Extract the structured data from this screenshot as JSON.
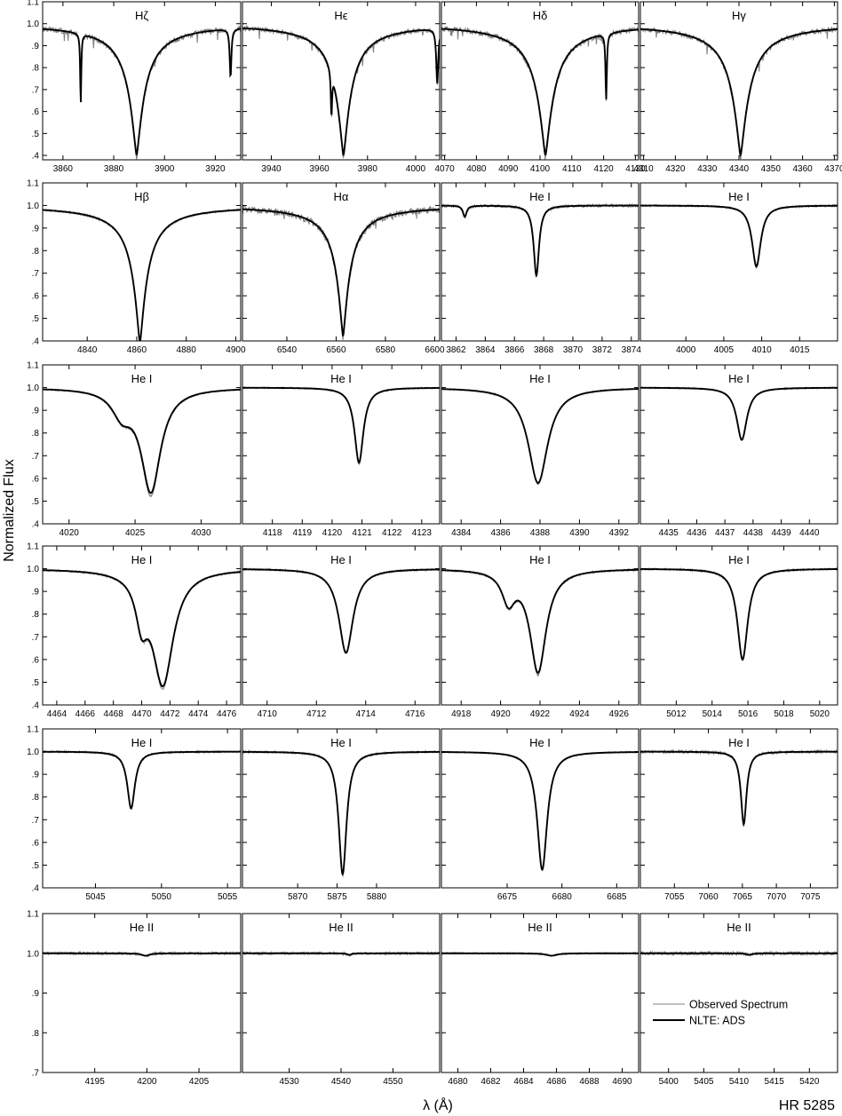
{
  "figure": {
    "ylabel": "Normalized Flux",
    "xlabel": "λ (Å)",
    "star": "HR 5285",
    "colors": {
      "observed": "#808080",
      "model": "#000000",
      "axes": "#000000"
    }
  },
  "legend": {
    "placement": "inside bottom-right panel, lower half",
    "items": [
      {
        "label": "Observed Spectrum",
        "color": "#808080",
        "style": "thin"
      },
      {
        "label": "NLTE: ADS",
        "color": "#000000",
        "style": "thick"
      }
    ]
  },
  "chart_data": [
    {
      "type": "line",
      "title": "Hζ",
      "xlim": [
        3852,
        3930
      ],
      "ylim": [
        0.38,
        1.1
      ],
      "xticks": [
        3860,
        3880,
        3900,
        3920
      ],
      "yticks": [
        ".4",
        ".5",
        ".6",
        ".7",
        ".8",
        ".9",
        "1.0",
        "1.1"
      ],
      "lines": [
        {
          "center": 3889,
          "depth": 0.6,
          "width": 3.5,
          "broad": true
        },
        {
          "center": 3867,
          "depth": 0.32,
          "width": 0.25,
          "broad": false
        },
        {
          "center": 3926,
          "depth": 0.22,
          "width": 0.4,
          "broad": false
        }
      ],
      "obs_extra_depth": 0.02,
      "noise": 0.012
    },
    {
      "type": "line",
      "title": "Hϵ",
      "xlim": [
        3928,
        4010
      ],
      "ylim": [
        0.38,
        1.1
      ],
      "xticks": [
        3940,
        3960,
        3980,
        4000
      ],
      "yticks": [
        ".4",
        ".5",
        ".6",
        ".7",
        ".8",
        ".9",
        "1.0",
        "1.1"
      ],
      "lines": [
        {
          "center": 3970,
          "depth": 0.6,
          "width": 3.5,
          "broad": true
        },
        {
          "center": 3965,
          "depth": 0.2,
          "width": 0.3,
          "broad": false
        },
        {
          "center": 4009,
          "depth": 0.25,
          "width": 0.5,
          "broad": false
        }
      ],
      "obs_extra_depth": 0.02,
      "noise": 0.01
    },
    {
      "type": "line",
      "title": "Hδ",
      "xlim": [
        4069,
        4131
      ],
      "ylim": [
        0.38,
        1.1
      ],
      "xticks": [
        4070,
        4080,
        4090,
        4100,
        4110,
        4120,
        4130
      ],
      "yticks": [
        ".4",
        ".5",
        ".6",
        ".7",
        ".8",
        ".9",
        "1.0",
        "1.1"
      ],
      "lines": [
        {
          "center": 4101.7,
          "depth": 0.6,
          "width": 3.0,
          "broad": true
        },
        {
          "center": 4120.8,
          "depth": 0.3,
          "width": 0.25,
          "broad": false
        }
      ],
      "obs_extra_depth": 0.02,
      "noise": 0.012
    },
    {
      "type": "line",
      "title": "Hγ",
      "xlim": [
        4309,
        4371
      ],
      "ylim": [
        0.38,
        1.1
      ],
      "xticks": [
        4310,
        4320,
        4330,
        4340,
        4350,
        4360,
        4370
      ],
      "yticks": [
        ".4",
        ".5",
        ".6",
        ".7",
        ".8",
        ".9",
        "1.0",
        "1.1"
      ],
      "lines": [
        {
          "center": 4340.5,
          "depth": 0.6,
          "width": 3.0,
          "broad": true
        }
      ],
      "obs_extra_depth": 0.02,
      "noise": 0.01
    },
    {
      "type": "line",
      "title": "Hβ",
      "xlim": [
        4822,
        4902
      ],
      "ylim": [
        0.4,
        1.1
      ],
      "xticks": [
        4840,
        4860,
        4880,
        4900
      ],
      "yticks": [
        ".4",
        ".5",
        ".6",
        ".7",
        ".8",
        ".9",
        "1.0",
        "1.1"
      ],
      "lines": [
        {
          "center": 4861.3,
          "depth": 0.61,
          "width": 3.2,
          "broad": true
        }
      ],
      "obs_extra_depth": 0.01,
      "noise": 0.004
    },
    {
      "type": "line",
      "title": "Hα",
      "xlim": [
        6522,
        6602
      ],
      "ylim": [
        0.4,
        1.1
      ],
      "xticks": [
        6540,
        6560,
        6580,
        6600
      ],
      "yticks": [
        ".4",
        ".5",
        ".6",
        ".7",
        ".8",
        ".9",
        "1.0",
        "1.1"
      ],
      "lines": [
        {
          "center": 6562.8,
          "depth": 0.58,
          "width": 3.0,
          "broad": true
        }
      ],
      "obs_extra_depth": 0.02,
      "noise": 0.015
    },
    {
      "type": "line",
      "title": "He I",
      "xlim": [
        3861,
        3874.5
      ],
      "ylim": [
        0.4,
        1.1
      ],
      "xticks": [
        3862,
        3864,
        3866,
        3868,
        3870,
        3872,
        3874
      ],
      "yticks": [
        ".4",
        ".5",
        ".6",
        ".7",
        ".8",
        ".9",
        "1.0",
        "1.1"
      ],
      "lines": [
        {
          "center": 3867.5,
          "depth": 0.31,
          "width": 0.22,
          "broad": false
        },
        {
          "center": 3862.6,
          "depth": 0.05,
          "width": 0.15,
          "broad": false
        }
      ],
      "obs_extra_depth": 0.02,
      "noise": 0.006
    },
    {
      "type": "line",
      "title": "He I",
      "xlim": [
        3994,
        4020
      ],
      "ylim": [
        0.4,
        1.1
      ],
      "xticks": [
        4000,
        4005,
        4010,
        4015
      ],
      "yticks": [
        ".4",
        ".5",
        ".6",
        ".7",
        ".8",
        ".9",
        "1.0",
        "1.1"
      ],
      "lines": [
        {
          "center": 4009.3,
          "depth": 0.27,
          "width": 0.7,
          "broad": false
        }
      ],
      "obs_extra_depth": 0.02,
      "noise": 0.004
    },
    {
      "type": "line",
      "title": "He I",
      "xlim": [
        4018,
        4033
      ],
      "ylim": [
        0.4,
        1.1
      ],
      "xticks": [
        4020,
        4025,
        4030
      ],
      "yticks": [
        ".4",
        ".5",
        ".6",
        ".7",
        ".8",
        ".9",
        "1.0",
        "1.1"
      ],
      "lines": [
        {
          "center": 4026.2,
          "depth": 0.45,
          "width": 0.9,
          "broad": false
        },
        {
          "center": 4024.0,
          "depth": 0.1,
          "width": 0.9,
          "broad": false
        }
      ],
      "obs_extra_depth": 0.03,
      "noise": 0.003
    },
    {
      "type": "line",
      "title": "He I",
      "xlim": [
        4117,
        4123.6
      ],
      "ylim": [
        0.4,
        1.1
      ],
      "xticks": [
        4118,
        4119,
        4120,
        4121,
        4122,
        4123
      ],
      "yticks": [
        ".4",
        ".5",
        ".6",
        ".7",
        ".8",
        ".9",
        "1.0",
        "1.1"
      ],
      "lines": [
        {
          "center": 4120.9,
          "depth": 0.33,
          "width": 0.18,
          "broad": false
        }
      ],
      "obs_extra_depth": 0.02,
      "noise": 0.003
    },
    {
      "type": "line",
      "title": "He I",
      "xlim": [
        4383,
        4393
      ],
      "ylim": [
        0.4,
        1.1
      ],
      "xticks": [
        4384,
        4386,
        4388,
        4390,
        4392
      ],
      "yticks": [
        ".4",
        ".5",
        ".6",
        ".7",
        ".8",
        ".9",
        "1.0",
        "1.1"
      ],
      "lines": [
        {
          "center": 4387.9,
          "depth": 0.42,
          "width": 0.6,
          "broad": false
        }
      ],
      "obs_extra_depth": 0.01,
      "noise": 0.003
    },
    {
      "type": "line",
      "title": "He I",
      "xlim": [
        4434,
        4441
      ],
      "ylim": [
        0.4,
        1.1
      ],
      "xticks": [
        4435,
        4436,
        4437,
        4438,
        4439,
        4440
      ],
      "yticks": [
        ".4",
        ".5",
        ".6",
        ".7",
        ".8",
        ".9",
        "1.0",
        "1.1"
      ],
      "lines": [
        {
          "center": 4437.6,
          "depth": 0.23,
          "width": 0.22,
          "broad": false
        }
      ],
      "obs_extra_depth": 0.01,
      "noise": 0.003
    },
    {
      "type": "line",
      "title": "He I",
      "xlim": [
        4463,
        4477
      ],
      "ylim": [
        0.4,
        1.1
      ],
      "xticks": [
        4464,
        4466,
        4468,
        4470,
        4472,
        4474,
        4476
      ],
      "yticks": [
        ".4",
        ".5",
        ".6",
        ".7",
        ".8",
        ".9",
        "1.0",
        "1.1"
      ],
      "lines": [
        {
          "center": 4471.5,
          "depth": 0.5,
          "width": 0.9,
          "broad": false
        },
        {
          "center": 4470.0,
          "depth": 0.18,
          "width": 0.5,
          "broad": false
        }
      ],
      "obs_extra_depth": 0.02,
      "noise": 0.004
    },
    {
      "type": "line",
      "title": "He I",
      "xlim": [
        4709,
        4717
      ],
      "ylim": [
        0.4,
        1.1
      ],
      "xticks": [
        4710,
        4712,
        4714,
        4716
      ],
      "yticks": [
        ".4",
        ".5",
        ".6",
        ".7",
        ".8",
        ".9",
        "1.0",
        "1.1"
      ],
      "lines": [
        {
          "center": 4713.2,
          "depth": 0.37,
          "width": 0.35,
          "broad": false
        }
      ],
      "obs_extra_depth": 0.01,
      "noise": 0.004
    },
    {
      "type": "line",
      "title": "He I",
      "xlim": [
        4917,
        4927
      ],
      "ylim": [
        0.4,
        1.1
      ],
      "xticks": [
        4918,
        4920,
        4922,
        4924,
        4926
      ],
      "yticks": [
        ".4",
        ".5",
        ".6",
        ".7",
        ".8",
        ".9",
        "1.0",
        "1.1"
      ],
      "lines": [
        {
          "center": 4921.9,
          "depth": 0.45,
          "width": 0.5,
          "broad": false
        },
        {
          "center": 4920.4,
          "depth": 0.13,
          "width": 0.4,
          "broad": false
        }
      ],
      "obs_extra_depth": 0.02,
      "noise": 0.004
    },
    {
      "type": "line",
      "title": "He I",
      "xlim": [
        5010,
        5021
      ],
      "ylim": [
        0.4,
        1.1
      ],
      "xticks": [
        5012,
        5014,
        5016,
        5018,
        5020
      ],
      "yticks": [
        ".4",
        ".5",
        ".6",
        ".7",
        ".8",
        ".9",
        "1.0",
        "1.1"
      ],
      "lines": [
        {
          "center": 5015.7,
          "depth": 0.4,
          "width": 0.35,
          "broad": false
        }
      ],
      "obs_extra_depth": 0.01,
      "noise": 0.004
    },
    {
      "type": "line",
      "title": "He I",
      "xlim": [
        5041,
        5056
      ],
      "ylim": [
        0.4,
        1.1
      ],
      "xticks": [
        5045,
        5050,
        5055
      ],
      "yticks": [
        ".4",
        ".5",
        ".6",
        ".7",
        ".8",
        ".9",
        "1.0",
        "1.1"
      ],
      "lines": [
        {
          "center": 5047.7,
          "depth": 0.25,
          "width": 0.35,
          "broad": false
        }
      ],
      "obs_extra_depth": 0.01,
      "noise": 0.004
    },
    {
      "type": "line",
      "title": "He I",
      "xlim": [
        5863,
        5888
      ],
      "ylim": [
        0.4,
        1.1
      ],
      "xticks": [
        5870,
        5875,
        5880
      ],
      "yticks": [
        ".4",
        ".5",
        ".6",
        ".7",
        ".8",
        ".9",
        "1.0",
        "1.1"
      ],
      "lines": [
        {
          "center": 5875.7,
          "depth": 0.54,
          "width": 0.6,
          "broad": false
        }
      ],
      "obs_extra_depth": 0.01,
      "noise": 0.004
    },
    {
      "type": "line",
      "title": "He I",
      "xlim": [
        6669,
        6687
      ],
      "ylim": [
        0.4,
        1.1
      ],
      "xticks": [
        6675,
        6680,
        6685
      ],
      "yticks": [
        ".4",
        ".5",
        ".6",
        ".7",
        ".8",
        ".9",
        "1.0",
        "1.1"
      ],
      "lines": [
        {
          "center": 6678.2,
          "depth": 0.52,
          "width": 0.55,
          "broad": false
        }
      ],
      "obs_extra_depth": 0.01,
      "noise": 0.003
    },
    {
      "type": "line",
      "title": "He I",
      "xlim": [
        7050,
        7079
      ],
      "ylim": [
        0.4,
        1.1
      ],
      "xticks": [
        7055,
        7060,
        7065,
        7070,
        7075
      ],
      "yticks": [
        ".4",
        ".5",
        ".6",
        ".7",
        ".8",
        ".9",
        "1.0",
        "1.1"
      ],
      "lines": [
        {
          "center": 7065.2,
          "depth": 0.32,
          "width": 0.5,
          "broad": false
        }
      ],
      "obs_extra_depth": 0.01,
      "noise": 0.006
    },
    {
      "type": "line",
      "title": "He II",
      "xlim": [
        4190,
        4209
      ],
      "ylim": [
        0.7,
        1.1
      ],
      "xticks": [
        4195,
        4200,
        4205
      ],
      "yticks": [
        ".7",
        ".8",
        ".9",
        "1.0",
        "1.1"
      ],
      "lines": [
        {
          "center": 4199.9,
          "depth": 0.006,
          "width": 0.5,
          "broad": false
        }
      ],
      "obs_extra_depth": 0.0,
      "noise": 0.003
    },
    {
      "type": "line",
      "title": "He II",
      "xlim": [
        4521,
        4559
      ],
      "ylim": [
        0.7,
        1.1
      ],
      "xticks": [
        4530,
        4540,
        4550
      ],
      "yticks": [
        ".7",
        ".8",
        ".9",
        "1.0",
        "1.1"
      ],
      "lines": [
        {
          "center": 4541.6,
          "depth": 0.004,
          "width": 0.5,
          "broad": false
        }
      ],
      "obs_extra_depth": 0.0,
      "noise": 0.003
    },
    {
      "type": "line",
      "title": "He II",
      "xlim": [
        4679,
        4691
      ],
      "ylim": [
        0.7,
        1.1
      ],
      "xticks": [
        4680,
        4682,
        4684,
        4686,
        4688,
        4690
      ],
      "yticks": [
        ".7",
        ".8",
        ".9",
        "1.0",
        "1.1"
      ],
      "lines": [
        {
          "center": 4685.7,
          "depth": 0.006,
          "width": 0.4,
          "broad": false
        }
      ],
      "obs_extra_depth": 0.0,
      "noise": 0.002
    },
    {
      "type": "line",
      "title": "He II",
      "xlim": [
        5396,
        5424
      ],
      "ylim": [
        0.7,
        1.1
      ],
      "xticks": [
        5400,
        5405,
        5410,
        5415,
        5420
      ],
      "yticks": [
        ".7",
        ".8",
        ".9",
        "1.0",
        "1.1"
      ],
      "lines": [
        {
          "center": 5411.5,
          "depth": 0.004,
          "width": 0.5,
          "broad": false
        }
      ],
      "obs_extra_depth": 0.0,
      "noise": 0.004
    }
  ]
}
